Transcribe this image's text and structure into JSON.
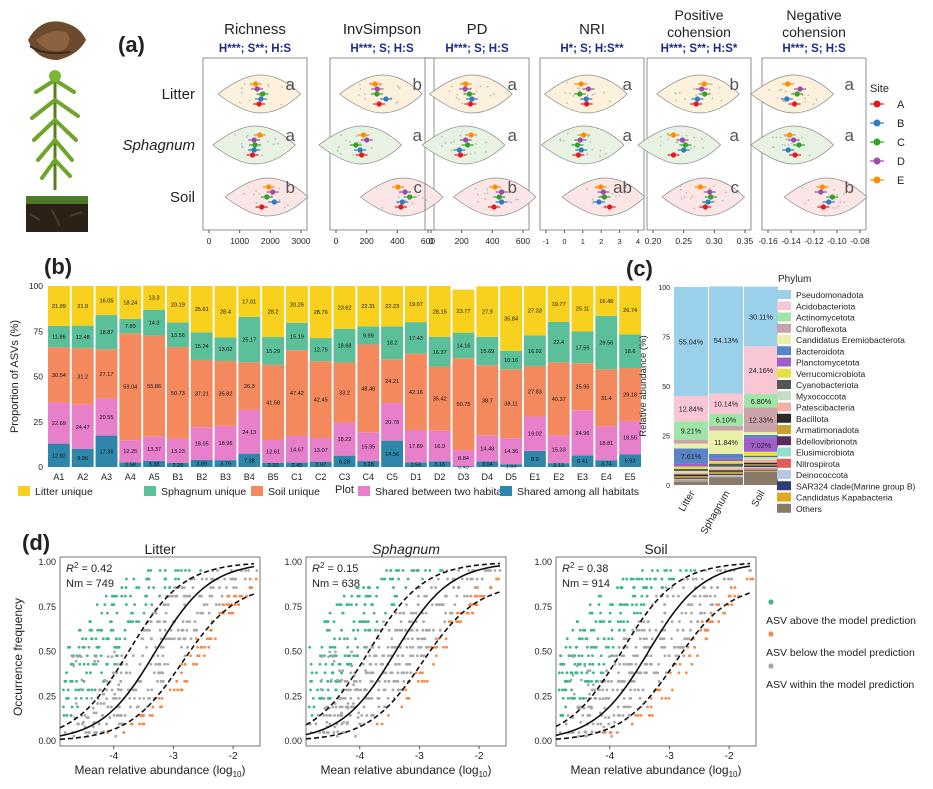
{
  "panel_a": {
    "label": "(a)",
    "panels": [
      {
        "title": "Richness",
        "stats": "H***; S**; H:S",
        "ticks": [
          "0",
          "1000",
          "2000",
          "3000"
        ],
        "letters": [
          "a",
          "a",
          "b"
        ]
      },
      {
        "title": "InvSimpson",
        "stats": "H***; S; H:S",
        "ticks": [
          "0",
          "200",
          "400",
          "600"
        ],
        "letters": [
          "b",
          "a",
          "c"
        ]
      },
      {
        "title": "PD",
        "stats": "H***; S; H:S",
        "ticks": [
          "0",
          "200",
          "400",
          "600"
        ],
        "letters": [
          "a",
          "a",
          "b"
        ]
      },
      {
        "title": "NRI",
        "stats": "H*; S; H:S**",
        "ticks": [
          "-1",
          "0",
          "1",
          "2",
          "3",
          "4"
        ],
        "letters": [
          "a",
          "a",
          "ab"
        ]
      },
      {
        "title": "Positive cohension",
        "stats": "H***; S**; H:S*",
        "ticks": [
          "0.20",
          "0.25",
          "0.30",
          "0.35"
        ],
        "letters": [
          "b",
          "a",
          "c"
        ]
      },
      {
        "title": "Negative cohension",
        "stats": "H***; S; H:S",
        "ticks": [
          "-0.16",
          "-0.14",
          "-0.12",
          "-0.10",
          "-0.08"
        ],
        "letters": [
          "a",
          "a",
          "b"
        ]
      }
    ],
    "rows": [
      "Litter",
      "Sphagnum",
      "Soil"
    ],
    "legend_title": "Site",
    "sites": [
      "A",
      "B",
      "C",
      "D",
      "E"
    ],
    "site_colors": [
      "#e31a1c",
      "#2e7bbf",
      "#33a02c",
      "#984ea3",
      "#ff8c00"
    ]
  },
  "chart_data": [
    {
      "type": "bar",
      "panel": "(b)",
      "ylabel": "Proportion of ASVs (%)",
      "xlabel": "Plot",
      "ylim": [
        0,
        100
      ],
      "yticks": [
        "0",
        "25",
        "50",
        "75",
        "100"
      ],
      "categories": [
        "A1",
        "A2",
        "A3",
        "A4",
        "A5",
        "B1",
        "B2",
        "B3",
        "B4",
        "B5",
        "C1",
        "C2",
        "C3",
        "C4",
        "C5",
        "D1",
        "D2",
        "D3",
        "D4",
        "D5",
        "E1",
        "E2",
        "E3",
        "E4",
        "E5"
      ],
      "series": [
        {
          "name": "Shared among all habitats",
          "color": "#2e86ab",
          "values": [
            12.92,
            9.96,
            17.36,
            2.58,
            3.38,
            2.29,
            3.89,
            3.79,
            7.38,
            2.32,
            2.45,
            2.97,
            6.28,
            3.28,
            14.56,
            2.56,
            3.16,
            0.49,
            3.04,
            1.53,
            8.9,
            2.13,
            6.41,
            3.74,
            6.93
          ]
        },
        {
          "name": "Shared between two habitats",
          "color": "#e77fca",
          "values": [
            22.69,
            24.47,
            20.55,
            12.25,
            13.37,
            13.23,
            18.05,
            18.96,
            24.13,
            12.61,
            14.67,
            13.07,
            18.22,
            15.95,
            20.78,
            17.89,
            16.9,
            8.84,
            14.48,
            14.36,
            19.02,
            15.33,
            24.96,
            18.81,
            18.55
          ]
        },
        {
          "name": "Soil unique",
          "color": "#f4895e",
          "values": [
            30.54,
            31.2,
            27.17,
            59.04,
            55.86,
            50.73,
            37.21,
            35.82,
            26.3,
            41.58,
            47.42,
            42.45,
            33.2,
            48.46,
            24.21,
            42.16,
            35.42,
            50.75,
            38.7,
            38.11,
            27.83,
            40.37,
            25.95,
            31.4,
            29.18
          ]
        },
        {
          "name": "Sphagnum unique",
          "color": "#5bbf9a",
          "values": [
            11.86,
            12.48,
            18.87,
            7.89,
            14.3,
            13.56,
            15.24,
            13.02,
            25.17,
            15.29,
            15.19,
            12.75,
            18.68,
            9.99,
            18.2,
            17.43,
            16.37,
            14.16,
            15.69,
            10.16,
            16.92,
            22.4,
            17.56,
            29.56,
            18.6
          ]
        },
        {
          "name": "Litter unique",
          "color": "#f7d11e",
          "values": [
            21.99,
            21.9,
            16.05,
            18.24,
            13.3,
            20.19,
            25.61,
            28.4,
            17.01,
            28.2,
            20.26,
            28.76,
            23.62,
            22.31,
            22.23,
            19.97,
            28.15,
            23.77,
            27.9,
            35.84,
            27.33,
            19.77,
            25.11,
            16.49,
            26.74
          ]
        }
      ]
    },
    {
      "type": "bar",
      "panel": "(c)",
      "ylabel": "Relative abundance (%)",
      "ylim": [
        0,
        100
      ],
      "yticks": [
        "0",
        "25",
        "50",
        "75",
        "100"
      ],
      "categories": [
        "Litter",
        "Sphagnum",
        "Soil"
      ],
      "legend_title": "Phylum",
      "series": [
        {
          "name": "Pseudomonadota",
          "color": "#9bd0ea",
          "values": [
            55.04,
            54.13,
            30.11
          ]
        },
        {
          "name": "Acidobacteriota",
          "color": "#f9c6d6",
          "values": [
            12.84,
            10.14,
            24.16
          ]
        },
        {
          "name": "Actinomycetota",
          "color": "#9fe5a6",
          "values": [
            9.21,
            6.1,
            6.8
          ]
        },
        {
          "name": "Chloroflexota",
          "color": "#c9a3a8",
          "values": [
            2.0,
            2.4,
            12.33
          ]
        },
        {
          "name": "Candidatus Eremiobacterota",
          "color": "#e9f0a8",
          "values": [
            2.5,
            11.84,
            1.5
          ]
        },
        {
          "name": "Bacteroidota",
          "color": "#5a84c8",
          "values": [
            7.61,
            2.4,
            1.5
          ]
        },
        {
          "name": "Planctomycetota",
          "color": "#a05ec8",
          "values": [
            1.5,
            1.2,
            7.02
          ]
        },
        {
          "name": "Verrucomicrobiota",
          "color": "#e6e040",
          "values": [
            1.2,
            1.3,
            2.0
          ]
        },
        {
          "name": "Cyanobacteriota",
          "color": "#555555",
          "values": [
            1.0,
            1.5,
            0.6
          ]
        },
        {
          "name": "Myxococcota",
          "color": "#c1dec3",
          "values": [
            0.9,
            1.0,
            1.5
          ]
        },
        {
          "name": "Patescibacteria",
          "color": "#f2b0a0",
          "values": [
            0.9,
            0.8,
            1.4
          ]
        },
        {
          "name": "Bacillota",
          "color": "#2a2a2a",
          "values": [
            0.8,
            0.8,
            0.8
          ]
        },
        {
          "name": "Armatimonadota",
          "color": "#c6a22f",
          "values": [
            0.8,
            1.0,
            0.6
          ]
        },
        {
          "name": "Bdellovibrionota",
          "color": "#5b2b61",
          "values": [
            0.6,
            0.6,
            0.8
          ]
        },
        {
          "name": "Elusimicrobiota",
          "color": "#8fdfcf",
          "values": [
            0.4,
            0.4,
            0.7
          ]
        },
        {
          "name": "Nitrospirota",
          "color": "#e45a5a",
          "values": [
            0.2,
            0.2,
            0.6
          ]
        },
        {
          "name": "Deinococcota",
          "color": "#b7c9e2",
          "values": [
            0.3,
            0.3,
            0.3
          ]
        },
        {
          "name": "SAR324 clade(Marine group B)",
          "color": "#2c3d7a",
          "values": [
            0.3,
            0.3,
            0.4
          ]
        },
        {
          "name": "Candidatus Kapabacteria",
          "color": "#e1a91c",
          "values": [
            0.3,
            0.2,
            0.5
          ]
        },
        {
          "name": "Others",
          "color": "#8a7b68",
          "values": [
            1.61,
            3.68,
            6.58
          ]
        }
      ],
      "labels": [
        {
          "col": 0,
          "series": "Pseudomonadota",
          "text": "55.04%"
        },
        {
          "col": 0,
          "series": "Acidobacteriota",
          "text": "12.84%"
        },
        {
          "col": 0,
          "series": "Actinomycetota",
          "text": "9.21%"
        },
        {
          "col": 0,
          "series": "Bacteroidota",
          "text": "7.61%"
        },
        {
          "col": 1,
          "series": "Pseudomonadota",
          "text": "54.13%"
        },
        {
          "col": 1,
          "series": "Acidobacteriota",
          "text": "10.14%"
        },
        {
          "col": 1,
          "series": "Actinomycetota",
          "text": "6.10%"
        },
        {
          "col": 1,
          "series": "Candidatus Eremiobacterota",
          "text": "11.84%"
        },
        {
          "col": 2,
          "series": "Pseudomonadota",
          "text": "30.11%"
        },
        {
          "col": 2,
          "series": "Acidobacteriota",
          "text": "24.16%"
        },
        {
          "col": 2,
          "series": "Actinomycetota",
          "text": "6.80%"
        },
        {
          "col": 2,
          "series": "Chloroflexota",
          "text": "12.33%"
        },
        {
          "col": 2,
          "series": "Planctomycetota",
          "text": "7.02%"
        }
      ]
    },
    {
      "type": "scatter",
      "panel": "(d)",
      "ylabel": "Occurrence frequency",
      "xlabel_main": "Mean relative abundance (log",
      "xlabel_sub": "10",
      "xlabel_end": ")",
      "xlim": [
        -4.9,
        -1.55
      ],
      "ylim": [
        0,
        1
      ],
      "xticks": [
        "-4",
        "-3",
        "-2"
      ],
      "yticks": [
        "0.00",
        "0.25",
        "0.50",
        "0.75",
        "1.00"
      ],
      "panels": [
        {
          "title": "Litter",
          "r2": "0.42",
          "nm": "Nm = 749",
          "c": -3.3
        },
        {
          "title": "Sphagnum",
          "r2": "0.15",
          "nm": "Nm = 638",
          "c": -3.4
        },
        {
          "title": "Soil",
          "r2": "0.38",
          "nm": "Nm = 914",
          "c": -3.35
        }
      ],
      "r2_label": "R",
      "r2_sup": "2",
      "legend": [
        {
          "label": "ASV above the model prediction",
          "color": "#3bb88a"
        },
        {
          "label": "ASV below the model prediction",
          "color": "#f58a4a"
        },
        {
          "label": "ASV within the model prediction",
          "color": "#a8a8a8"
        }
      ]
    }
  ]
}
